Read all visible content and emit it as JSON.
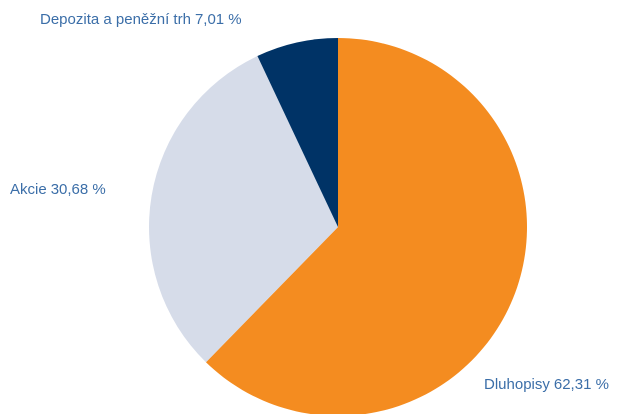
{
  "chart_data": {
    "type": "pie",
    "categories": [
      "Dluhopisy",
      "Akcie",
      "Depozita a peněžní trh"
    ],
    "values": [
      62.31,
      30.68,
      7.01
    ],
    "value_labels": [
      "62,31 %",
      "30,68 %",
      "7,01 %"
    ],
    "colors": [
      "#f48c20",
      "#d6dce9",
      "#003366"
    ]
  }
}
